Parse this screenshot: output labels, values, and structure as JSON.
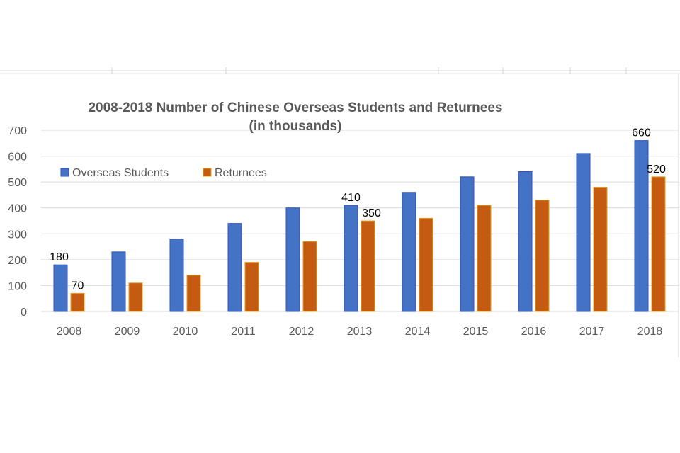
{
  "colors": {
    "overseas": "#4472C4",
    "overseas_edge": "#2F52B8",
    "returnees": "#C55A11",
    "returnees_edge": "#E0A020",
    "grid": "#D9D9D9"
  },
  "chart_data": {
    "type": "bar",
    "title": "2008-2018 Number of Chinese Overseas Students and Returnees",
    "subtitle": "(in thousands)",
    "categories": [
      "2008",
      "2009",
      "2010",
      "2011",
      "2012",
      "2013",
      "2014",
      "2015",
      "2016",
      "2017",
      "2018"
    ],
    "series": [
      {
        "name": "Overseas Students",
        "values": [
          180,
          230,
          280,
          340,
          400,
          410,
          460,
          520,
          540,
          610,
          660
        ]
      },
      {
        "name": "Returnees",
        "values": [
          70,
          110,
          140,
          190,
          270,
          350,
          360,
          410,
          430,
          480,
          520
        ]
      }
    ],
    "ylim": [
      0,
      700
    ],
    "yticks": [
      "0",
      "100",
      "200",
      "300",
      "400",
      "500",
      "600",
      "700"
    ],
    "grid": true,
    "legend": "top-left",
    "data_labels": [
      {
        "series": 0,
        "index": 0,
        "text": "180"
      },
      {
        "series": 1,
        "index": 0,
        "text": "70"
      },
      {
        "series": 0,
        "index": 5,
        "text": "410"
      },
      {
        "series": 1,
        "index": 5,
        "text": "350"
      },
      {
        "series": 0,
        "index": 10,
        "text": "660"
      },
      {
        "series": 1,
        "index": 10,
        "text": "520"
      }
    ]
  }
}
